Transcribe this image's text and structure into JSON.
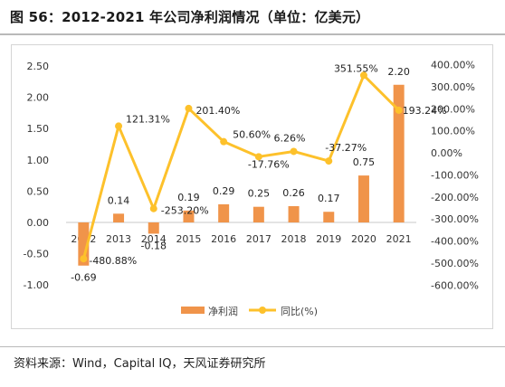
{
  "title": "图 56：2012-2021 年公司净利润情况（单位：亿美元）",
  "source": "资料来源：Wind，Capital IQ，天风证券研究所",
  "colors": {
    "bar": "#f0944a",
    "line": "#fdc12b",
    "title": "#1a1a1a",
    "axis": "#333333"
  },
  "chart_data": {
    "type": "bar",
    "categories": [
      "2012",
      "2013",
      "2014",
      "2015",
      "2016",
      "2017",
      "2018",
      "2019",
      "2020",
      "2021"
    ],
    "series": [
      {
        "name": "净利润",
        "type": "bar",
        "axis": "left",
        "values": [
          -0.69,
          0.14,
          -0.18,
          0.19,
          0.29,
          0.25,
          0.26,
          0.17,
          0.75,
          2.2
        ],
        "labels": [
          "-0.69",
          "0.14",
          "-0.18",
          "0.19",
          "0.29",
          "0.25",
          "0.26",
          "0.17",
          "0.75",
          "2.20"
        ]
      },
      {
        "name": "同比(%)",
        "type": "line",
        "axis": "right",
        "values": [
          -480.88,
          121.31,
          -253.2,
          201.4,
          50.6,
          -17.76,
          6.26,
          -37.27,
          351.55,
          193.24
        ],
        "labels": [
          "-480.88%",
          "121.31%",
          "-253.20%",
          "201.40%",
          "50.60%",
          "-17.76%",
          "6.26%",
          "-37.27%",
          "351.55%",
          "193.24%"
        ]
      }
    ],
    "y_left": {
      "min": -1.0,
      "max": 2.5,
      "ticks": [
        "2.50",
        "2.00",
        "1.50",
        "1.00",
        "0.50",
        "0.00",
        "-0.50",
        "-1.00"
      ]
    },
    "y_right": {
      "min": -600,
      "max": 400,
      "ticks": [
        "400.00%",
        "300.00%",
        "200.00%",
        "100.00%",
        "0.00%",
        "-100.00%",
        "-200.00%",
        "-300.00%",
        "-400.00%",
        "-500.00%",
        "-600.00%"
      ]
    },
    "legend": {
      "position": "bottom",
      "items": [
        "净利润",
        "同比(%)"
      ]
    },
    "grid": false
  }
}
